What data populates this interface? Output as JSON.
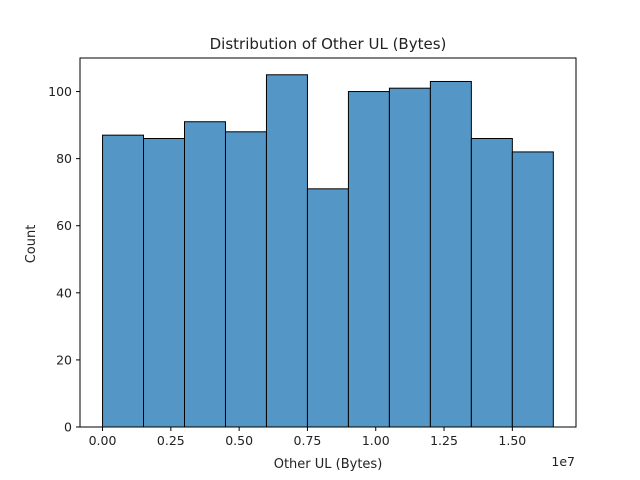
{
  "chart_data": {
    "type": "bar",
    "subtype": "histogram",
    "title": "Distribution of Other UL (Bytes)",
    "xlabel": "Other UL (Bytes)",
    "ylabel": "Count",
    "x_offset_label": "1e7",
    "x_tick_values": [
      0.0,
      0.25,
      0.5,
      0.75,
      1.0,
      1.25,
      1.5
    ],
    "x_tick_labels": [
      "0.00",
      "0.25",
      "0.50",
      "0.75",
      "1.00",
      "1.25",
      "1.50"
    ],
    "y_tick_values": [
      0,
      20,
      40,
      60,
      80,
      100
    ],
    "y_tick_labels": [
      "0",
      "20",
      "40",
      "60",
      "80",
      "100"
    ],
    "xlim": [
      -0.0825,
      1.733
    ],
    "ylim": [
      0,
      110
    ],
    "bin_edges": [
      0.0,
      0.15,
      0.3,
      0.45,
      0.6,
      0.75,
      0.9,
      1.05,
      1.2,
      1.35,
      1.5,
      1.65
    ],
    "values": [
      87,
      86,
      91,
      88,
      105,
      71,
      100,
      101,
      103,
      86,
      82
    ],
    "bar_color": "#5497c6",
    "edge_color": "#000000",
    "grid": false,
    "legend": "none"
  }
}
